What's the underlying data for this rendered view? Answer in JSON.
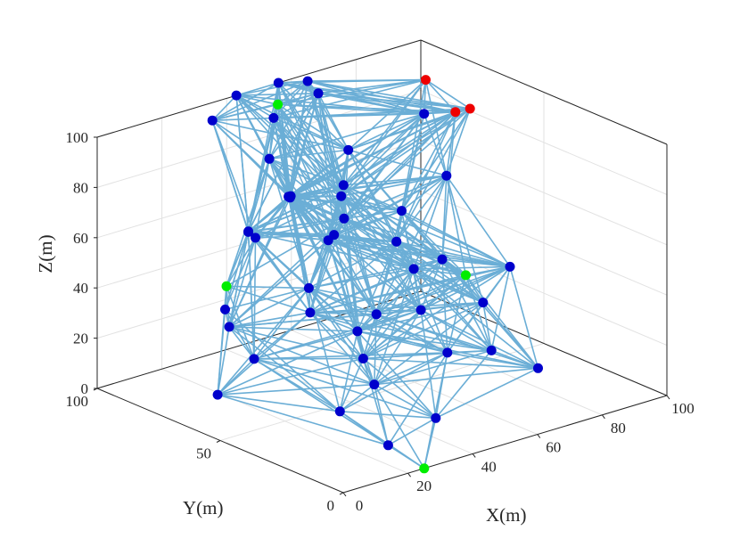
{
  "chart_data": {
    "type": "scatter",
    "title": "",
    "xlabel": "X(m)",
    "ylabel": "Y(m)",
    "zlabel": "Z(m)",
    "xlim": [
      0,
      100
    ],
    "ylim": [
      0,
      100
    ],
    "zlim": [
      0,
      100
    ],
    "xticks": [
      "0",
      "20",
      "40",
      "60",
      "80",
      "100"
    ],
    "yticks": [
      "0",
      "50",
      "100"
    ],
    "zticks": [
      "0",
      "20",
      "40",
      "60",
      "80",
      "100"
    ],
    "grid": true,
    "box": true,
    "link_color": "#6baed6",
    "series": [
      {
        "color": "#0000cc",
        "points": [
          [
            28,
            90,
            100
          ],
          [
            43,
            100,
            100
          ],
          [
            56,
            100,
            100
          ],
          [
            62,
            96,
            100
          ],
          [
            63,
            93,
            96
          ],
          [
            53,
            98,
            88
          ],
          [
            38,
            80,
            85
          ],
          [
            20,
            62,
            68
          ],
          [
            0,
            48,
            53
          ],
          [
            12,
            52,
            27
          ],
          [
            18,
            70,
            30
          ],
          [
            3,
            55,
            15
          ],
          [
            33,
            82,
            57
          ],
          [
            50,
            88,
            62
          ],
          [
            52,
            90,
            60
          ],
          [
            56,
            95,
            57
          ],
          [
            58,
            80,
            47
          ],
          [
            60,
            85,
            42
          ],
          [
            64,
            85,
            58
          ],
          [
            67,
            88,
            60
          ],
          [
            70,
            90,
            72
          ],
          [
            30,
            78,
            60
          ],
          [
            43,
            70,
            26
          ],
          [
            50,
            60,
            20
          ],
          [
            40,
            40,
            11
          ],
          [
            65,
            72,
            16
          ],
          [
            75,
            70,
            31
          ],
          [
            82,
            75,
            88
          ],
          [
            88,
            92,
            40
          ],
          [
            95,
            83,
            55
          ],
          [
            80,
            65,
            35
          ],
          [
            88,
            48,
            36
          ],
          [
            85,
            55,
            20
          ],
          [
            80,
            45,
            7
          ],
          [
            83,
            30,
            5
          ],
          [
            55,
            30,
            22
          ],
          [
            40,
            15,
            8
          ],
          [
            23,
            12,
            5
          ],
          [
            18,
            25,
            15
          ],
          [
            62,
            50,
            28
          ],
          [
            48,
            55,
            12
          ],
          [
            55,
            72,
            58
          ],
          [
            35,
            60,
            43
          ],
          [
            75,
            77,
            39
          ]
        ]
      },
      {
        "color": "#00ee00",
        "points": [
          [
            52,
            95,
            95
          ],
          [
            8,
            58,
            55
          ],
          [
            85,
            62,
            28
          ],
          [
            25,
            0,
            0
          ]
        ]
      },
      {
        "color": "#ee0000",
        "points": [
          [
            97,
            82,
            80
          ],
          [
            100,
            98,
            85
          ],
          [
            100,
            80,
            81
          ]
        ]
      }
    ]
  }
}
